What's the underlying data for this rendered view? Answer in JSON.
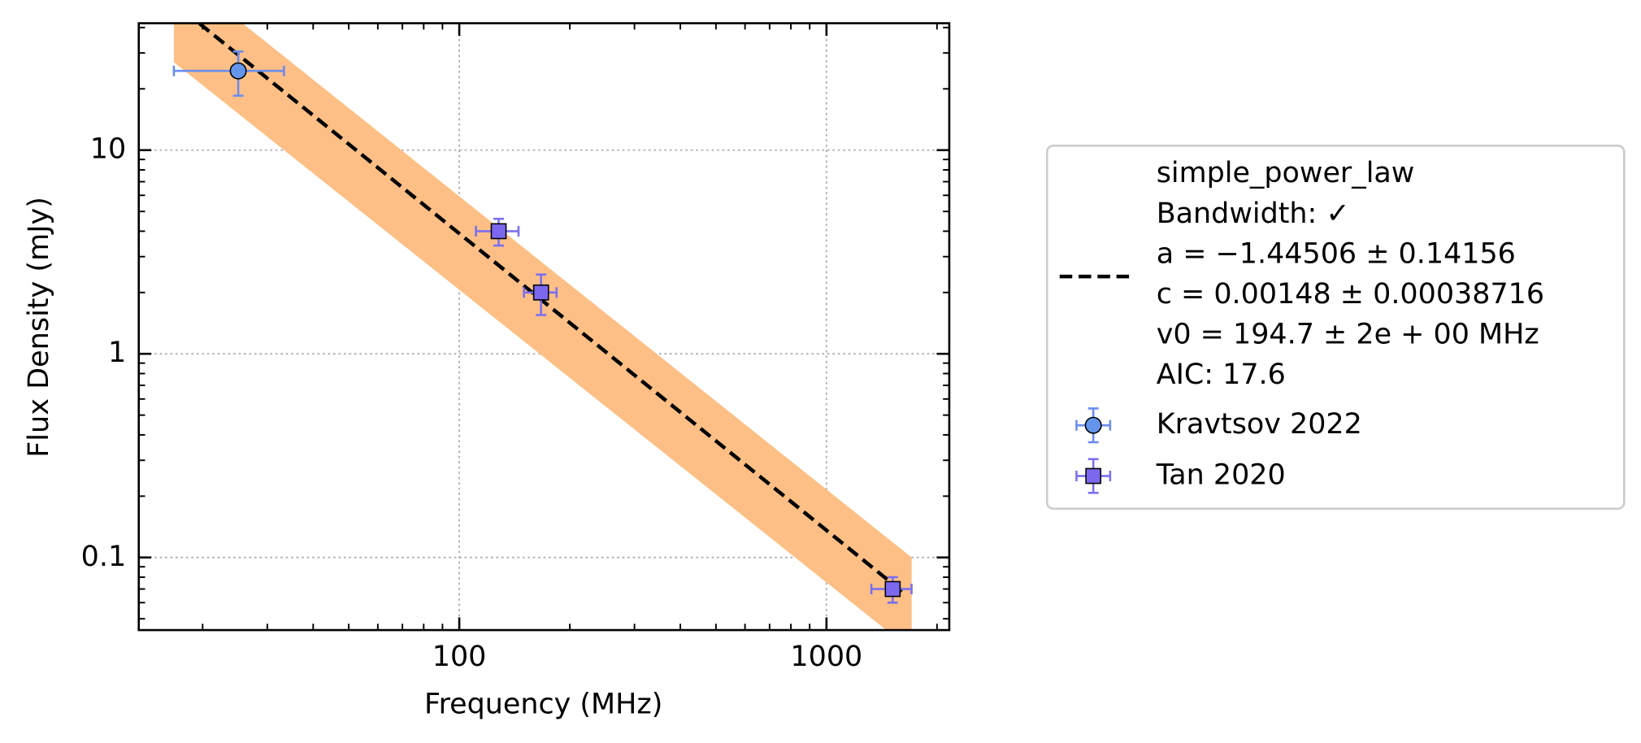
{
  "chart_data": {
    "type": "scatter",
    "xlabel": "Frequency (MHz)",
    "ylabel": "Flux Density (mJy)",
    "xscale": "log",
    "yscale": "log",
    "xlim": [
      13.4,
      2160
    ],
    "ylim": [
      0.044,
      42
    ],
    "xticks": [
      100,
      1000
    ],
    "yticks": [
      0.1,
      1,
      10
    ],
    "grid": true,
    "legend": "right",
    "band": {
      "x": [
        16.7,
        1706
      ],
      "upper": [
        78,
        0.1
      ],
      "lower": [
        27,
        0.035
      ],
      "color": "#fdbf85"
    },
    "fit": {
      "label_lines": [
        "simple_power_law",
        "Bandwidth: ✓",
        "a = −1.44506 ± 0.14156",
        "c = 0.00148 ± 0.00038716",
        "v0 = 194.7 ± 2e + 00 MHz",
        "AIC: 17.6"
      ],
      "x": [
        19.6,
        1630
      ],
      "values": [
        41.9,
        0.0667
      ],
      "color": "#000000"
    },
    "series": [
      {
        "name": "Kravtsov 2022",
        "marker": "circle",
        "color": "#6495ed",
        "ecolor": "#6a8cf0",
        "x": [
          25
        ],
        "values": [
          24.5
        ],
        "xerr": [
          8.3
        ],
        "yerr": [
          6
        ]
      },
      {
        "name": "Tan 2020",
        "marker": "square",
        "color": "#7b68ee",
        "ecolor": "#7b6ff0",
        "x": [
          128,
          167,
          1515
        ],
        "values": [
          4.0,
          2.0,
          0.07
        ],
        "xerr": [
          17,
          17,
          190
        ],
        "yerr": [
          0.6,
          0.45,
          0.01
        ]
      }
    ]
  }
}
